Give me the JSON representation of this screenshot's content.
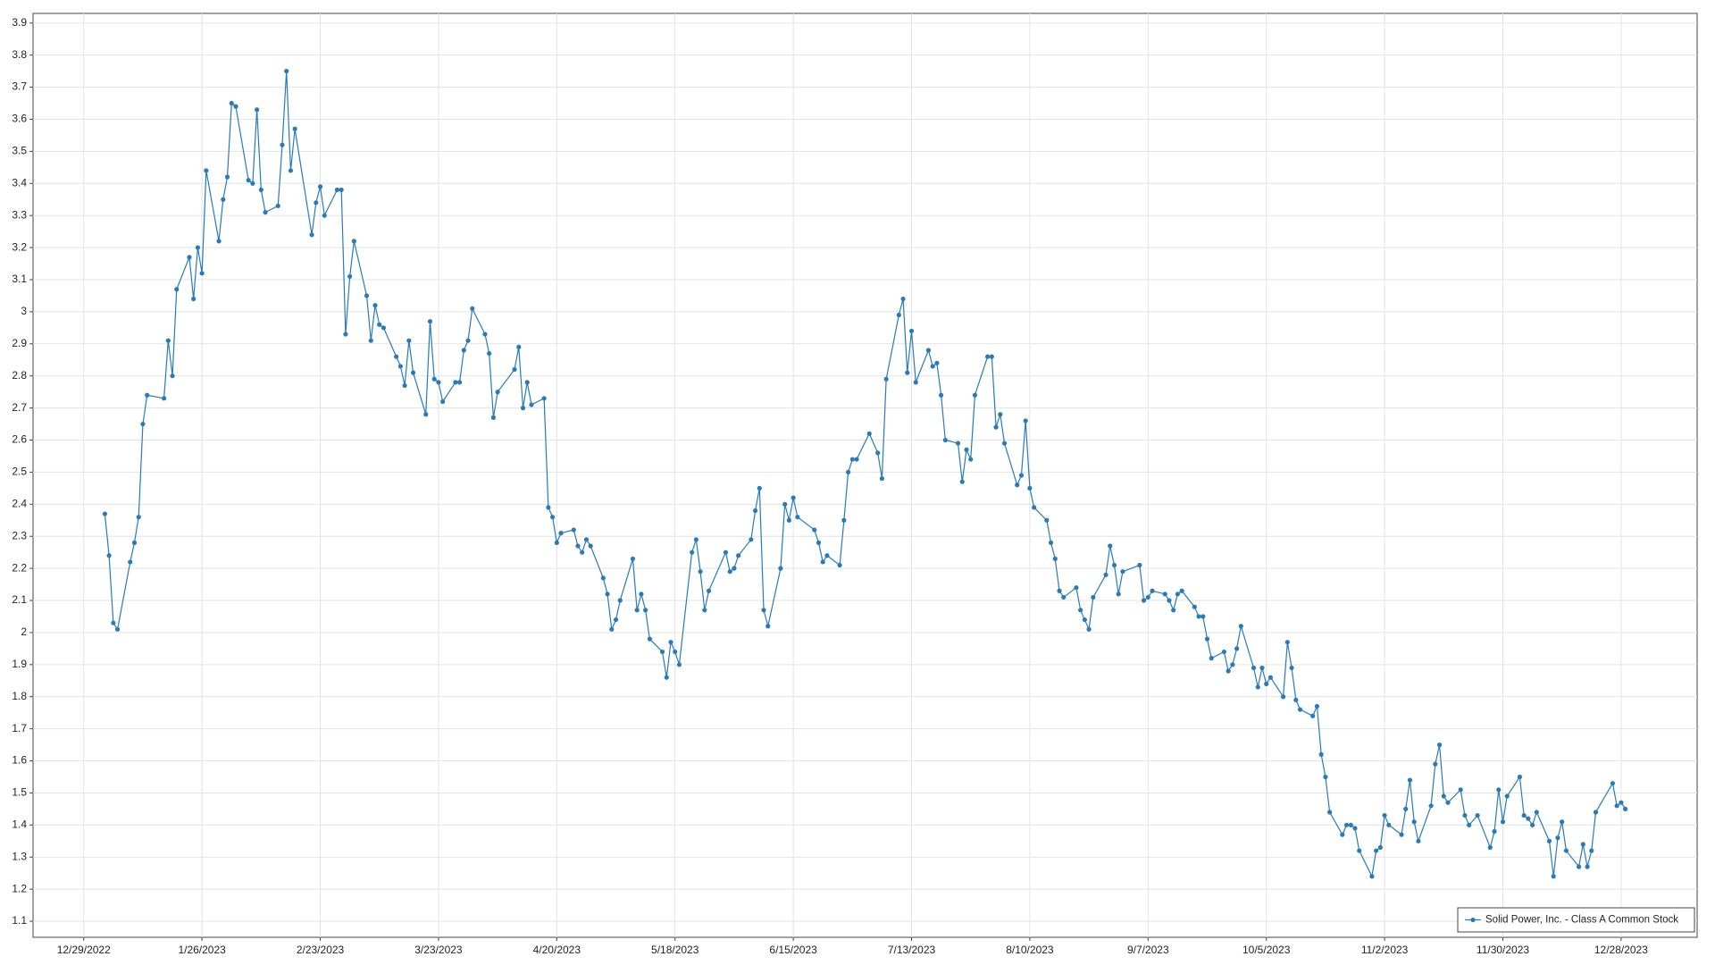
{
  "chart_data": {
    "type": "line",
    "x": [
      "1/3/2023",
      "1/4/2023",
      "1/5/2023",
      "1/6/2023",
      "1/9/2023",
      "1/10/2023",
      "1/11/2023",
      "1/12/2023",
      "1/13/2023",
      "1/17/2023",
      "1/18/2023",
      "1/19/2023",
      "1/20/2023",
      "1/23/2023",
      "1/24/2023",
      "1/25/2023",
      "1/26/2023",
      "1/27/2023",
      "1/30/2023",
      "1/31/2023",
      "2/1/2023",
      "2/2/2023",
      "2/3/2023",
      "2/6/2023",
      "2/7/2023",
      "2/8/2023",
      "2/9/2023",
      "2/10/2023",
      "2/13/2023",
      "2/14/2023",
      "2/15/2023",
      "2/16/2023",
      "2/17/2023",
      "2/21/2023",
      "2/22/2023",
      "2/23/2023",
      "2/24/2023",
      "2/27/2023",
      "2/28/2023",
      "3/1/2023",
      "3/2/2023",
      "3/3/2023",
      "3/6/2023",
      "3/7/2023",
      "3/8/2023",
      "3/9/2023",
      "3/10/2023",
      "3/13/2023",
      "3/14/2023",
      "3/15/2023",
      "3/16/2023",
      "3/17/2023",
      "3/20/2023",
      "3/21/2023",
      "3/22/2023",
      "3/23/2023",
      "3/24/2023",
      "3/27/2023",
      "3/28/2023",
      "3/29/2023",
      "3/30/2023",
      "3/31/2023",
      "4/3/2023",
      "4/4/2023",
      "4/5/2023",
      "4/6/2023",
      "4/10/2023",
      "4/11/2023",
      "4/12/2023",
      "4/13/2023",
      "4/14/2023",
      "4/17/2023",
      "4/18/2023",
      "4/19/2023",
      "4/20/2023",
      "4/21/2023",
      "4/24/2023",
      "4/25/2023",
      "4/26/2023",
      "4/27/2023",
      "4/28/2023",
      "5/1/2023",
      "5/2/2023",
      "5/3/2023",
      "5/4/2023",
      "5/5/2023",
      "5/8/2023",
      "5/9/2023",
      "5/10/2023",
      "5/11/2023",
      "5/12/2023",
      "5/15/2023",
      "5/16/2023",
      "5/17/2023",
      "5/18/2023",
      "5/19/2023",
      "5/22/2023",
      "5/23/2023",
      "5/24/2023",
      "5/25/2023",
      "5/26/2023",
      "5/30/2023",
      "5/31/2023",
      "6/1/2023",
      "6/2/2023",
      "6/5/2023",
      "6/6/2023",
      "6/7/2023",
      "6/8/2023",
      "6/9/2023",
      "6/12/2023",
      "6/13/2023",
      "6/14/2023",
      "6/15/2023",
      "6/16/2023",
      "6/20/2023",
      "6/21/2023",
      "6/22/2023",
      "6/23/2023",
      "6/26/2023",
      "6/27/2023",
      "6/28/2023",
      "6/29/2023",
      "6/30/2023",
      "7/3/2023",
      "7/5/2023",
      "7/6/2023",
      "7/7/2023",
      "7/10/2023",
      "7/11/2023",
      "7/12/2023",
      "7/13/2023",
      "7/14/2023",
      "7/17/2023",
      "7/18/2023",
      "7/19/2023",
      "7/20/2023",
      "7/21/2023",
      "7/24/2023",
      "7/25/2023",
      "7/26/2023",
      "7/27/2023",
      "7/28/2023",
      "7/31/2023",
      "8/1/2023",
      "8/2/2023",
      "8/3/2023",
      "8/4/2023",
      "8/7/2023",
      "8/8/2023",
      "8/9/2023",
      "8/10/2023",
      "8/11/2023",
      "8/14/2023",
      "8/15/2023",
      "8/16/2023",
      "8/17/2023",
      "8/18/2023",
      "8/21/2023",
      "8/22/2023",
      "8/23/2023",
      "8/24/2023",
      "8/25/2023",
      "8/28/2023",
      "8/29/2023",
      "8/30/2023",
      "8/31/2023",
      "9/1/2023",
      "9/5/2023",
      "9/6/2023",
      "9/7/2023",
      "9/8/2023",
      "9/11/2023",
      "9/12/2023",
      "9/13/2023",
      "9/14/2023",
      "9/15/2023",
      "9/18/2023",
      "9/19/2023",
      "9/20/2023",
      "9/21/2023",
      "9/22/2023",
      "9/25/2023",
      "9/26/2023",
      "9/27/2023",
      "9/28/2023",
      "9/29/2023",
      "10/2/2023",
      "10/3/2023",
      "10/4/2023",
      "10/5/2023",
      "10/6/2023",
      "10/9/2023",
      "10/10/2023",
      "10/11/2023",
      "10/12/2023",
      "10/13/2023",
      "10/16/2023",
      "10/17/2023",
      "10/18/2023",
      "10/19/2023",
      "10/20/2023",
      "10/23/2023",
      "10/24/2023",
      "10/25/2023",
      "10/26/2023",
      "10/27/2023",
      "10/30/2023",
      "10/31/2023",
      "11/1/2023",
      "11/2/2023",
      "11/3/2023",
      "11/6/2023",
      "11/7/2023",
      "11/8/2023",
      "11/9/2023",
      "11/10/2023",
      "11/13/2023",
      "11/14/2023",
      "11/15/2023",
      "11/16/2023",
      "11/17/2023",
      "11/20/2023",
      "11/21/2023",
      "11/22/2023",
      "11/24/2023",
      "11/27/2023",
      "11/28/2023",
      "11/29/2023",
      "11/30/2023",
      "12/1/2023",
      "12/4/2023",
      "12/5/2023",
      "12/6/2023",
      "12/7/2023",
      "12/8/2023",
      "12/11/2023",
      "12/12/2023",
      "12/13/2023",
      "12/14/2023",
      "12/15/2023",
      "12/18/2023",
      "12/19/2023",
      "12/20/2023",
      "12/21/2023",
      "12/22/2023",
      "12/26/2023",
      "12/27/2023",
      "12/28/2023",
      "12/29/2023"
    ],
    "series": [
      {
        "name": "Solid Power, Inc. - Class A Common Stock",
        "color": "#2a7ab9",
        "values": [
          2.37,
          2.24,
          2.03,
          2.01,
          2.22,
          2.28,
          2.36,
          2.65,
          2.74,
          2.73,
          2.91,
          2.8,
          3.07,
          3.17,
          3.04,
          3.2,
          3.12,
          3.44,
          3.22,
          3.35,
          3.42,
          3.65,
          3.64,
          3.41,
          3.4,
          3.63,
          3.38,
          3.31,
          3.33,
          3.52,
          3.75,
          3.44,
          3.57,
          3.24,
          3.34,
          3.39,
          3.3,
          3.38,
          3.38,
          2.93,
          3.11,
          3.22,
          3.05,
          2.91,
          3.02,
          2.96,
          2.95,
          2.86,
          2.83,
          2.77,
          2.91,
          2.81,
          2.68,
          2.97,
          2.79,
          2.78,
          2.72,
          2.78,
          2.78,
          2.88,
          2.91,
          3.01,
          2.93,
          2.87,
          2.67,
          2.75,
          2.82,
          2.89,
          2.7,
          2.78,
          2.71,
          2.73,
          2.39,
          2.36,
          2.28,
          2.31,
          2.32,
          2.27,
          2.25,
          2.29,
          2.27,
          2.17,
          2.12,
          2.01,
          2.04,
          2.1,
          2.23,
          2.07,
          2.12,
          2.07,
          1.98,
          1.94,
          1.86,
          1.97,
          1.94,
          1.9,
          2.25,
          2.29,
          2.19,
          2.07,
          2.13,
          2.25,
          2.19,
          2.2,
          2.24,
          2.29,
          2.38,
          2.45,
          2.07,
          2.02,
          2.2,
          2.4,
          2.35,
          2.42,
          2.36,
          2.32,
          2.28,
          2.22,
          2.24,
          2.21,
          2.35,
          2.5,
          2.54,
          2.54,
          2.62,
          2.56,
          2.48,
          2.79,
          2.99,
          3.04,
          2.81,
          2.94,
          2.78,
          2.88,
          2.83,
          2.84,
          2.74,
          2.6,
          2.59,
          2.47,
          2.57,
          2.54,
          2.74,
          2.86,
          2.86,
          2.64,
          2.68,
          2.59,
          2.46,
          2.49,
          2.66,
          2.45,
          2.39,
          2.35,
          2.28,
          2.23,
          2.13,
          2.11,
          2.14,
          2.07,
          2.04,
          2.01,
          2.11,
          2.18,
          2.27,
          2.21,
          2.12,
          2.19,
          2.21,
          2.1,
          2.11,
          2.13,
          2.12,
          2.1,
          2.07,
          2.12,
          2.13,
          2.08,
          2.05,
          2.05,
          1.98,
          1.92,
          1.94,
          1.88,
          1.9,
          1.95,
          2.02,
          1.89,
          1.83,
          1.89,
          1.84,
          1.86,
          1.8,
          1.97,
          1.89,
          1.79,
          1.76,
          1.74,
          1.77,
          1.62,
          1.55,
          1.44,
          1.37,
          1.4,
          1.4,
          1.39,
          1.32,
          1.24,
          1.32,
          1.33,
          1.43,
          1.4,
          1.37,
          1.45,
          1.54,
          1.41,
          1.35,
          1.46,
          1.59,
          1.65,
          1.49,
          1.47,
          1.51,
          1.43,
          1.4,
          1.43,
          1.33,
          1.38,
          1.51,
          1.41,
          1.49,
          1.55,
          1.43,
          1.42,
          1.4,
          1.44,
          1.35,
          1.24,
          1.36,
          1.41,
          1.32,
          1.27,
          1.34,
          1.27,
          1.32,
          1.44,
          1.53,
          1.46,
          1.47,
          1.45
        ]
      }
    ],
    "xlim": [
      "12/17/2022",
      "1/15/2024"
    ],
    "xticks": [
      "12/29/2022",
      "1/26/2023",
      "2/23/2023",
      "3/23/2023",
      "4/20/2023",
      "5/18/2023",
      "6/15/2023",
      "7/13/2023",
      "8/10/2023",
      "9/7/2023",
      "10/5/2023",
      "11/2/2023",
      "11/30/2023",
      "12/28/2023"
    ],
    "ylim": [
      1.05,
      3.93
    ],
    "yticks": [
      1.1,
      1.2,
      1.3,
      1.4,
      1.5,
      1.6,
      1.7,
      1.8,
      1.9,
      2,
      2.1,
      2.2,
      2.3,
      2.4,
      2.5,
      2.6,
      2.7,
      2.8,
      2.9,
      3,
      3.1,
      3.2,
      3.3,
      3.4,
      3.5,
      3.6,
      3.7,
      3.8,
      3.9
    ],
    "grid": true,
    "legend": "lower right"
  }
}
